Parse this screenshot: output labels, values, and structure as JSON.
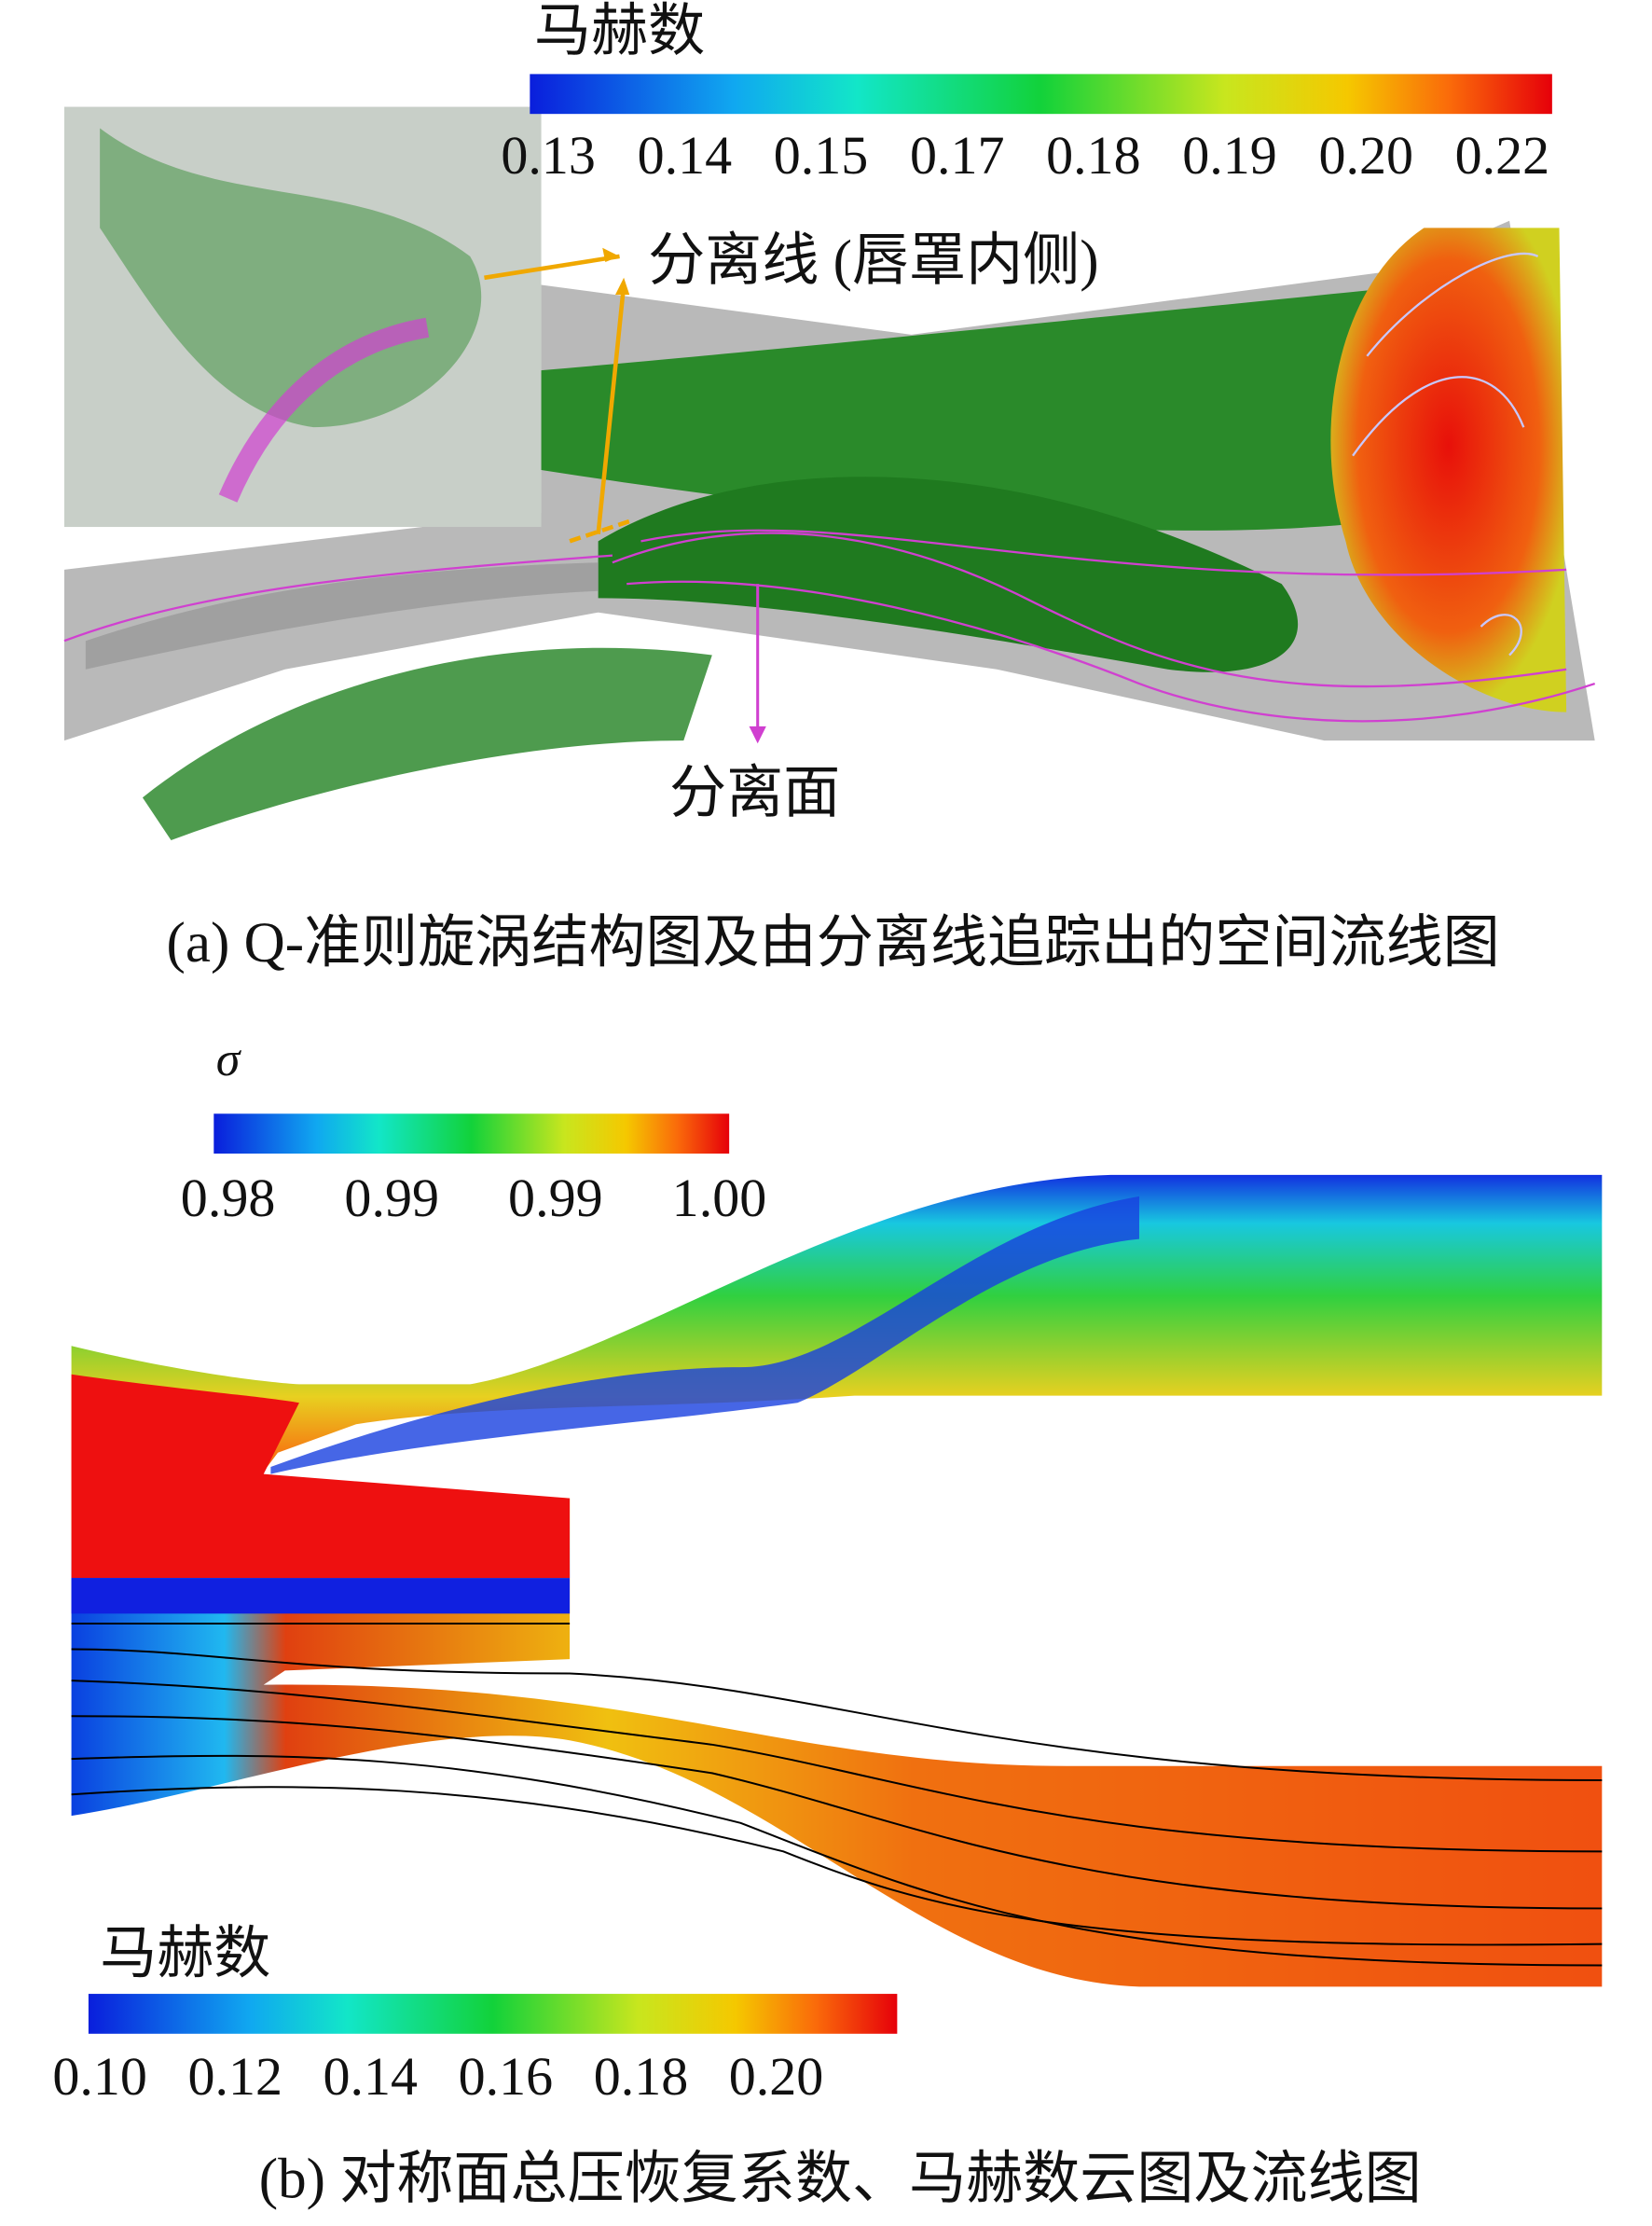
{
  "panel_a": {
    "colorbar": {
      "title": "马赫数",
      "ticks": [
        "0.13",
        "0.14",
        "0.15",
        "0.17",
        "0.18",
        "0.19",
        "0.20",
        "0.22"
      ]
    },
    "annotations": {
      "separation_line": "分离线 (唇罩内侧)",
      "separation_surface": "分离面"
    },
    "caption": "(a) Q-准则旋涡结构图及由分离线追踪出的空间流线图"
  },
  "panel_b": {
    "sigma_colorbar": {
      "title": "σ",
      "ticks": [
        "0.98",
        "0.99",
        "0.99",
        "1.00"
      ]
    },
    "mach_colorbar": {
      "title": "马赫数",
      "ticks": [
        "0.10",
        "0.12",
        "0.14",
        "0.16",
        "0.18",
        "0.20"
      ]
    },
    "caption": "(b) 对称面总压恢复系数、马赫数云图及流线图"
  }
}
